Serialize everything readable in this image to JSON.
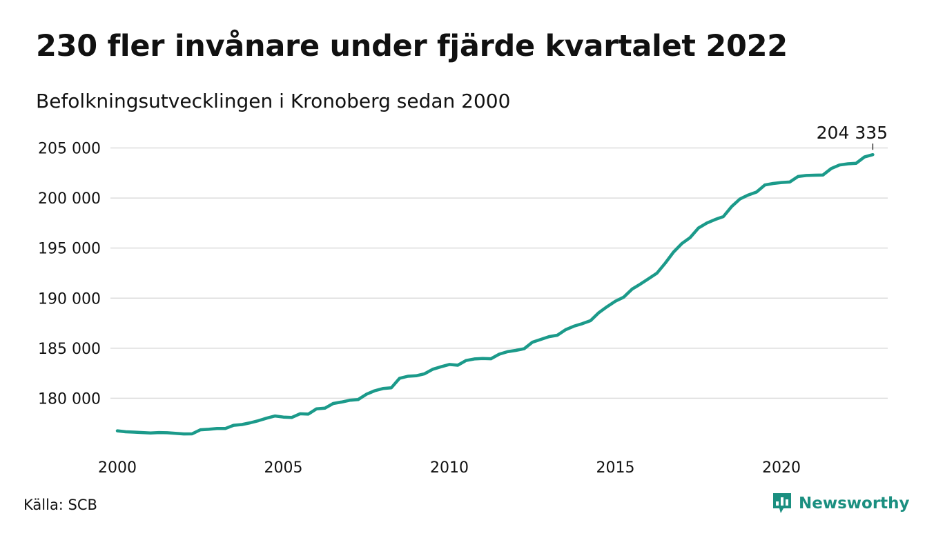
{
  "title": "230 fler invånare under fjärde kvartalet 2022",
  "subtitle": "Befolkningsutvecklingen i Kronoberg sedan 2000",
  "source": "Källa: SCB",
  "brand": {
    "name": "Newsworthy",
    "logo_icon": "newsworthy-bar-chart-icon"
  },
  "colors": {
    "line": "#1b9a8a",
    "grid": "#dcdcdc",
    "text": "#111111",
    "brand": "#1b8f80"
  },
  "chart_data": {
    "type": "line",
    "title": "230 fler invånare under fjärde kvartalet 2022",
    "subtitle": "Befolkningsutvecklingen i Kronoberg sedan 2000",
    "x_ticks": [
      2000,
      2005,
      2010,
      2015,
      2020
    ],
    "x_tick_labels": [
      "2000",
      "2005",
      "2010",
      "2015",
      "2020"
    ],
    "y_ticks": [
      180000,
      185000,
      190000,
      195000,
      200000,
      205000
    ],
    "y_tick_labels": [
      "180 000",
      "185 000",
      "190 000",
      "195 000",
      "200 000",
      "205 000"
    ],
    "xlim": [
      2000,
      2023.2
    ],
    "ylim": [
      175000,
      206000
    ],
    "grid": "horizontal",
    "legend": "none",
    "end_label": "204 335",
    "series": [
      {
        "values": [
          {
            "x": 2000.0,
            "y": 176750
          },
          {
            "x": 2000.25,
            "y": 176650
          },
          {
            "x": 2000.5,
            "y": 176620
          },
          {
            "x": 2000.75,
            "y": 176580
          },
          {
            "x": 2001.0,
            "y": 176530
          },
          {
            "x": 2001.25,
            "y": 176580
          },
          {
            "x": 2001.5,
            "y": 176560
          },
          {
            "x": 2001.75,
            "y": 176500
          },
          {
            "x": 2002.0,
            "y": 176440
          },
          {
            "x": 2002.25,
            "y": 176450
          },
          {
            "x": 2002.5,
            "y": 176850
          },
          {
            "x": 2002.75,
            "y": 176900
          },
          {
            "x": 2003.0,
            "y": 176980
          },
          {
            "x": 2003.25,
            "y": 176980
          },
          {
            "x": 2003.5,
            "y": 177300
          },
          {
            "x": 2003.75,
            "y": 177380
          },
          {
            "x": 2004.0,
            "y": 177550
          },
          {
            "x": 2004.25,
            "y": 177760
          },
          {
            "x": 2004.5,
            "y": 178020
          },
          {
            "x": 2004.75,
            "y": 178230
          },
          {
            "x": 2005.0,
            "y": 178120
          },
          {
            "x": 2005.25,
            "y": 178080
          },
          {
            "x": 2005.5,
            "y": 178450
          },
          {
            "x": 2005.75,
            "y": 178420
          },
          {
            "x": 2006.0,
            "y": 178950
          },
          {
            "x": 2006.25,
            "y": 179010
          },
          {
            "x": 2006.5,
            "y": 179480
          },
          {
            "x": 2006.75,
            "y": 179620
          },
          {
            "x": 2007.0,
            "y": 179800
          },
          {
            "x": 2007.25,
            "y": 179870
          },
          {
            "x": 2007.5,
            "y": 180400
          },
          {
            "x": 2007.75,
            "y": 180750
          },
          {
            "x": 2008.0,
            "y": 180970
          },
          {
            "x": 2008.25,
            "y": 181050
          },
          {
            "x": 2008.5,
            "y": 182000
          },
          {
            "x": 2008.75,
            "y": 182200
          },
          {
            "x": 2009.0,
            "y": 182250
          },
          {
            "x": 2009.25,
            "y": 182450
          },
          {
            "x": 2009.5,
            "y": 182900
          },
          {
            "x": 2009.75,
            "y": 183150
          },
          {
            "x": 2010.0,
            "y": 183380
          },
          {
            "x": 2010.25,
            "y": 183300
          },
          {
            "x": 2010.5,
            "y": 183770
          },
          {
            "x": 2010.75,
            "y": 183930
          },
          {
            "x": 2011.0,
            "y": 183970
          },
          {
            "x": 2011.25,
            "y": 183950
          },
          {
            "x": 2011.5,
            "y": 184400
          },
          {
            "x": 2011.75,
            "y": 184650
          },
          {
            "x": 2012.0,
            "y": 184780
          },
          {
            "x": 2012.25,
            "y": 184950
          },
          {
            "x": 2012.5,
            "y": 185600
          },
          {
            "x": 2012.75,
            "y": 185880
          },
          {
            "x": 2013.0,
            "y": 186150
          },
          {
            "x": 2013.25,
            "y": 186300
          },
          {
            "x": 2013.5,
            "y": 186850
          },
          {
            "x": 2013.75,
            "y": 187200
          },
          {
            "x": 2014.0,
            "y": 187450
          },
          {
            "x": 2014.25,
            "y": 187750
          },
          {
            "x": 2014.5,
            "y": 188550
          },
          {
            "x": 2014.75,
            "y": 189150
          },
          {
            "x": 2015.0,
            "y": 189700
          },
          {
            "x": 2015.25,
            "y": 190100
          },
          {
            "x": 2015.5,
            "y": 190900
          },
          {
            "x": 2015.75,
            "y": 191400
          },
          {
            "x": 2016.0,
            "y": 191950
          },
          {
            "x": 2016.25,
            "y": 192500
          },
          {
            "x": 2016.5,
            "y": 193500
          },
          {
            "x": 2016.75,
            "y": 194600
          },
          {
            "x": 2017.0,
            "y": 195450
          },
          {
            "x": 2017.25,
            "y": 196050
          },
          {
            "x": 2017.5,
            "y": 197000
          },
          {
            "x": 2017.75,
            "y": 197500
          },
          {
            "x": 2018.0,
            "y": 197850
          },
          {
            "x": 2018.25,
            "y": 198150
          },
          {
            "x": 2018.5,
            "y": 199150
          },
          {
            "x": 2018.75,
            "y": 199900
          },
          {
            "x": 2019.0,
            "y": 200300
          },
          {
            "x": 2019.25,
            "y": 200600
          },
          {
            "x": 2019.5,
            "y": 201300
          },
          {
            "x": 2019.75,
            "y": 201450
          },
          {
            "x": 2020.0,
            "y": 201550
          },
          {
            "x": 2020.25,
            "y": 201600
          },
          {
            "x": 2020.5,
            "y": 202150
          },
          {
            "x": 2020.75,
            "y": 202250
          },
          {
            "x": 2021.0,
            "y": 202280
          },
          {
            "x": 2021.25,
            "y": 202300
          },
          {
            "x": 2021.5,
            "y": 202950
          },
          {
            "x": 2021.75,
            "y": 203300
          },
          {
            "x": 2022.0,
            "y": 203420
          },
          {
            "x": 2022.25,
            "y": 203470
          },
          {
            "x": 2022.5,
            "y": 204100
          },
          {
            "x": 2022.75,
            "y": 204335
          }
        ]
      }
    ]
  }
}
